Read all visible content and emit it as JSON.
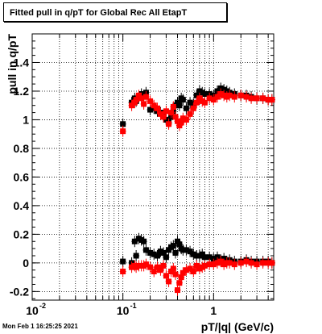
{
  "chart_data": {
    "type": "scatter",
    "title": "Fitted pull in q/pT for Global Rec All EtapT",
    "xlabel": "pT/|q| (GeV/c)",
    "ylabel": "pull in q/pT",
    "x_scale": "log",
    "xlim": [
      0.01,
      4.6
    ],
    "ylim": [
      -0.26,
      1.6
    ],
    "x_ticks": [
      {
        "value": 0.01,
        "label": "10",
        "exp": "-2"
      },
      {
        "value": 0.1,
        "label": "10",
        "exp": "-1"
      },
      {
        "value": 1,
        "label": "1",
        "exp": ""
      }
    ],
    "y_ticks": [
      -0.2,
      0,
      0.2,
      0.4,
      0.6,
      0.8,
      1,
      1.2,
      1.4
    ],
    "grid": true,
    "legend": "none",
    "series": [
      {
        "color": "#000000",
        "role": "mean",
        "x": [
          0.1,
          0.125,
          0.135,
          0.14,
          0.15,
          0.16,
          0.17,
          0.18,
          0.2,
          0.22,
          0.24,
          0.26,
          0.28,
          0.3,
          0.32,
          0.34,
          0.36,
          0.38,
          0.4,
          0.42,
          0.44,
          0.46,
          0.5,
          0.55,
          0.6,
          0.65,
          0.7,
          0.75,
          0.8,
          0.9,
          1.0,
          1.1,
          1.2,
          1.3,
          1.4,
          1.5,
          1.7,
          2.0,
          2.3,
          2.6,
          3.0,
          3.5,
          4.0,
          4.4
        ],
        "y": [
          0.97,
          1.12,
          1.15,
          1.13,
          1.16,
          1.18,
          1.16,
          1.19,
          1.07,
          1.08,
          1.06,
          1.05,
          1.03,
          1.0,
          0.98,
          1.02,
          1.06,
          1.1,
          1.12,
          1.1,
          1.15,
          1.14,
          1.08,
          1.12,
          1.11,
          1.17,
          1.2,
          1.19,
          1.18,
          1.18,
          1.17,
          1.2,
          1.22,
          1.21,
          1.2,
          1.19,
          1.18,
          1.17,
          1.17,
          1.16,
          1.15,
          1.15,
          1.14,
          1.14
        ]
      },
      {
        "color": "#ff0000",
        "role": "mean",
        "x": [
          0.1,
          0.125,
          0.135,
          0.14,
          0.15,
          0.16,
          0.17,
          0.18,
          0.2,
          0.22,
          0.24,
          0.26,
          0.28,
          0.3,
          0.32,
          0.34,
          0.36,
          0.38,
          0.4,
          0.42,
          0.44,
          0.46,
          0.5,
          0.55,
          0.6,
          0.65,
          0.7,
          0.75,
          0.8,
          0.9,
          1.0,
          1.1,
          1.2,
          1.3,
          1.4,
          1.5,
          1.7,
          2.0,
          2.3,
          2.6,
          3.0,
          3.5,
          4.0,
          4.4
        ],
        "y": [
          0.92,
          1.1,
          1.12,
          1.14,
          1.17,
          1.15,
          1.11,
          1.16,
          1.13,
          1.1,
          1.08,
          1.04,
          1.02,
          1.06,
          0.97,
          1.05,
          1.09,
          1.02,
          0.99,
          0.96,
          0.98,
          1.01,
          1.0,
          1.04,
          1.08,
          1.12,
          1.15,
          1.13,
          1.12,
          1.15,
          1.14,
          1.16,
          1.18,
          1.17,
          1.16,
          1.17,
          1.16,
          1.17,
          1.16,
          1.15,
          1.15,
          1.15,
          1.14,
          1.14
        ]
      },
      {
        "color": "#000000",
        "role": "sigma",
        "x": [
          0.1,
          0.125,
          0.135,
          0.14,
          0.15,
          0.16,
          0.17,
          0.18,
          0.2,
          0.22,
          0.24,
          0.26,
          0.28,
          0.3,
          0.32,
          0.34,
          0.36,
          0.38,
          0.4,
          0.42,
          0.44,
          0.46,
          0.5,
          0.55,
          0.6,
          0.65,
          0.7,
          0.75,
          0.8,
          0.9,
          1.0,
          1.1,
          1.2,
          1.3,
          1.4,
          1.5,
          1.7,
          2.0,
          2.3,
          2.6,
          3.0,
          3.5,
          4.0,
          4.4
        ],
        "y": [
          0.01,
          0.0,
          0.15,
          0.05,
          0.17,
          0.16,
          0.15,
          0.09,
          0.07,
          0.06,
          0.05,
          0.08,
          0.07,
          0.04,
          0.09,
          0.11,
          0.12,
          0.07,
          0.15,
          0.13,
          0.1,
          0.09,
          0.09,
          0.08,
          0.06,
          0.05,
          0.05,
          0.06,
          0.04,
          0.04,
          0.03,
          0.04,
          0.02,
          0.03,
          0.01,
          0.02,
          0.01,
          0.01,
          0.02,
          0.01,
          0.01,
          0.01,
          0.01,
          0.0
        ]
      },
      {
        "color": "#ff0000",
        "role": "sigma",
        "x": [
          0.1,
          0.125,
          0.135,
          0.14,
          0.15,
          0.16,
          0.17,
          0.18,
          0.2,
          0.22,
          0.24,
          0.26,
          0.28,
          0.3,
          0.32,
          0.34,
          0.36,
          0.38,
          0.4,
          0.42,
          0.44,
          0.46,
          0.5,
          0.55,
          0.6,
          0.65,
          0.7,
          0.75,
          0.8,
          0.9,
          1.0,
          1.1,
          1.2,
          1.3,
          1.4,
          1.5,
          1.7,
          2.0,
          2.3,
          2.6,
          3.0,
          3.5,
          4.0,
          4.4
        ],
        "y": [
          -0.06,
          -0.03,
          -0.02,
          -0.03,
          -0.02,
          -0.02,
          -0.02,
          -0.01,
          -0.03,
          -0.06,
          -0.03,
          -0.05,
          -0.02,
          -0.09,
          -0.13,
          -0.06,
          -0.04,
          -0.08,
          -0.19,
          -0.14,
          -0.1,
          -0.07,
          -0.05,
          -0.04,
          -0.06,
          -0.02,
          -0.04,
          -0.03,
          -0.02,
          -0.01,
          -0.01,
          -0.0,
          0.01,
          -0.01,
          0.0,
          0.0,
          -0.01,
          0.0,
          0.01,
          0.0,
          -0.01,
          0.0,
          0.0,
          0.0
        ]
      }
    ]
  },
  "footer": {
    "timestamp": "Mon Feb  1 16:25:25 2021"
  }
}
